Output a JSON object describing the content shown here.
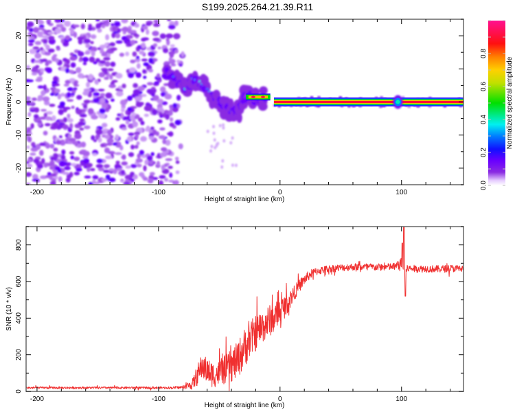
{
  "title": "S199.2025.264.21.39.R11",
  "chart_data": [
    {
      "type": "heatmap",
      "name": "spectrogram",
      "title": "S199.2025.264.21.39.R11",
      "xlabel": "Height of straight line (km)",
      "ylabel": "Frequency (Hz)",
      "xlim": [
        -209,
        151
      ],
      "ylim": [
        -25,
        25
      ],
      "xticks": [
        -200,
        -100,
        0,
        100
      ],
      "xtick_labels": [
        "-200",
        "-100",
        "0",
        "100"
      ],
      "yticks": [
        -20,
        -10,
        0,
        10,
        20
      ],
      "ytick_labels": [
        "-20",
        "-10",
        "0",
        "10",
        "20"
      ],
      "colorbar": {
        "label": "Normalized spectral amplitude",
        "range": [
          0.0,
          1.0
        ],
        "ticks": [
          0.0,
          0.2,
          0.4,
          0.6,
          0.8
        ],
        "tick_labels": [
          "0.0",
          "0.2",
          "0.4",
          "0.6",
          "0.8"
        ],
        "colormap": "rainbow (white-violet-blue-cyan-green-yellow-red-magenta)"
      },
      "features": {
        "noise_region_x": [
          -209,
          -82
        ],
        "noise_amplitude": 0.15,
        "dispersive_track": [
          {
            "x": -95,
            "y": 9,
            "amp": 0.25
          },
          {
            "x": -85,
            "y": 7,
            "amp": 0.3
          },
          {
            "x": -78,
            "y": 4,
            "amp": 0.35
          },
          {
            "x": -72,
            "y": 7,
            "amp": 0.35
          },
          {
            "x": -65,
            "y": 6,
            "amp": 0.3
          },
          {
            "x": -58,
            "y": 3,
            "amp": 0.35
          },
          {
            "x": -50,
            "y": 0,
            "amp": 0.3
          },
          {
            "x": -43,
            "y": -2,
            "amp": 0.35
          },
          {
            "x": -38,
            "y": -3,
            "amp": 0.45
          },
          {
            "x": -33,
            "y": -2,
            "amp": 0.55
          },
          {
            "x": -28,
            "y": 2,
            "amp": 0.6
          },
          {
            "x": -20,
            "y": 1,
            "amp": 0.8
          },
          {
            "x": -12,
            "y": 1,
            "amp": 0.8
          }
        ],
        "steady_line": {
          "x_start": -5,
          "x_end": 151,
          "y": 0,
          "amp": 0.95
        },
        "disturbance_at_x": 97
      },
      "legend": "colorbar right"
    },
    {
      "type": "line",
      "name": "snr",
      "xlabel": "Height of straight line (km)",
      "ylabel": "SNR (10 * v/v)",
      "xlim": [
        -209,
        151
      ],
      "ylim": [
        0,
        900
      ],
      "xticks": [
        -200,
        -100,
        0,
        100
      ],
      "xtick_labels": [
        "-200",
        "-100",
        "0",
        "100"
      ],
      "yticks": [
        0,
        200,
        400,
        600,
        800
      ],
      "ytick_labels": [
        "0",
        "200",
        "400",
        "600",
        "800"
      ],
      "series": [
        {
          "name": "SNR",
          "color": "#f03030",
          "envelope_x": [
            -209,
            -90,
            -80,
            -72,
            -68,
            -64,
            -60,
            -55,
            -50,
            -45,
            -40,
            -35,
            -30,
            -25,
            -20,
            -15,
            -10,
            -5,
            0,
            5,
            10,
            15,
            20,
            25,
            30,
            40,
            50,
            60,
            70,
            80,
            90,
            95,
            100,
            102,
            105,
            110,
            120,
            130,
            140,
            151
          ],
          "envelope_y": [
            20,
            20,
            22,
            40,
            90,
            140,
            110,
            90,
            100,
            120,
            140,
            170,
            230,
            280,
            320,
            350,
            380,
            400,
            440,
            470,
            520,
            570,
            610,
            640,
            655,
            670,
            675,
            680,
            680,
            678,
            680,
            682,
            700,
            640,
            672,
            670,
            670,
            668,
            672,
            670
          ],
          "noise_amplitude": [
            6,
            6,
            8,
            30,
            60,
            70,
            70,
            70,
            70,
            80,
            90,
            100,
            110,
            100,
            100,
            90,
            90,
            80,
            70,
            60,
            45,
            35,
            30,
            25,
            22,
            20,
            20,
            20,
            20,
            20,
            20,
            22,
            30,
            20,
            20,
            20,
            20,
            20,
            20,
            20
          ],
          "spike_at_x": 102,
          "spike_max": 900,
          "spike_min": 520
        }
      ]
    }
  ]
}
